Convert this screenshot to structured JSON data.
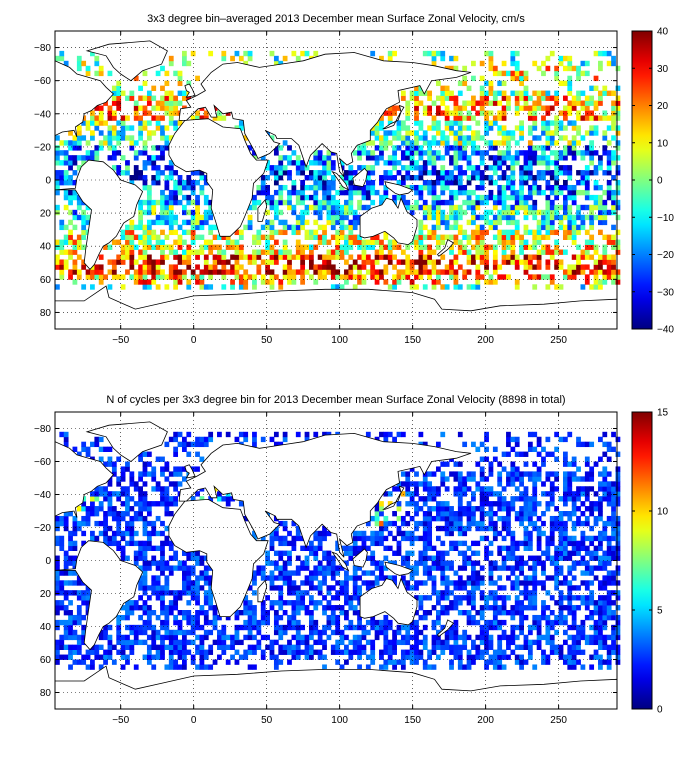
{
  "figure": {
    "panels": [
      {
        "title": "3x3 degree bin–averaged 2013 December mean Surface Zonal Velocity, cm/s",
        "colorbar_ticks": [
          "40",
          "30",
          "20",
          "10",
          "0",
          "−10",
          "−20",
          "−30",
          "−40"
        ]
      },
      {
        "title": "N of cycles per 3x3 degree bin for 2013 December mean Surface Zonal Velocity (8898 in total)",
        "colorbar_ticks": [
          "15",
          "10",
          "5",
          "0"
        ]
      }
    ],
    "x_tick_labels": [
      "−50",
      "0",
      "50",
      "100",
      "150",
      "200",
      "250"
    ],
    "y_tick_labels": [
      "80",
      "60",
      "40",
      "20",
      "0",
      "−20",
      "−40",
      "−60",
      "−80"
    ]
  },
  "chart_data": [
    {
      "type": "heatmap",
      "title": "3x3 degree bin–averaged 2013 December mean Surface Zonal Velocity, cm/s",
      "x_range": [
        -95,
        290
      ],
      "y_range": [
        -90,
        90
      ],
      "x_ticks": [
        -50,
        0,
        50,
        100,
        150,
        200,
        250
      ],
      "y_ticks": [
        -80,
        -60,
        -40,
        -20,
        0,
        20,
        40,
        60,
        80
      ],
      "grid": true,
      "bin_size_deg": 3,
      "colorbar": {
        "min": -40,
        "max": 40,
        "ticks": [
          40,
          30,
          20,
          10,
          0,
          -10,
          -20,
          -30,
          -40
        ],
        "colormap": "jet"
      },
      "zonal_pattern": [
        {
          "lat": [
            60,
            70
          ],
          "value": 10
        },
        {
          "lat": [
            35,
            50
          ],
          "value": 16
        },
        {
          "lat": [
            20,
            35
          ],
          "value": -2
        },
        {
          "lat": [
            5,
            20
          ],
          "value": -18
        },
        {
          "lat": [
            -3,
            5
          ],
          "value": -25
        },
        {
          "lat": [
            -15,
            -3
          ],
          "value": -18
        },
        {
          "lat": [
            -30,
            -15
          ],
          "value": -8
        },
        {
          "lat": [
            -45,
            -30
          ],
          "value": 8
        },
        {
          "lat": [
            -58,
            -45
          ],
          "value": 26
        },
        {
          "lat": [
            -63,
            -58
          ],
          "value": 14
        }
      ]
    },
    {
      "type": "heatmap",
      "title": "N of cycles per 3x3 degree bin for 2013 December mean Surface Zonal Velocity (8898 in total)",
      "total_cycles": 8898,
      "x_range": [
        -95,
        290
      ],
      "y_range": [
        -90,
        90
      ],
      "x_ticks": [
        -50,
        0,
        50,
        100,
        150,
        200,
        250
      ],
      "y_ticks": [
        -80,
        -60,
        -40,
        -20,
        0,
        20,
        40,
        60,
        80
      ],
      "grid": true,
      "bin_size_deg": 3,
      "colorbar": {
        "min": 0,
        "max": 15,
        "ticks": [
          15,
          10,
          5,
          0
        ],
        "colormap": "jet"
      },
      "typical_count_range": [
        1,
        4
      ],
      "high_count_regions": [
        {
          "lon": [
            120,
            145
          ],
          "lat": [
            20,
            45
          ],
          "count": 10
        },
        {
          "lon": [
            -80,
            -65
          ],
          "lat": [
            25,
            40
          ],
          "count": 8
        },
        {
          "lon": [
            0,
            40
          ],
          "lat": [
            35,
            45
          ],
          "count": 8
        }
      ]
    }
  ]
}
